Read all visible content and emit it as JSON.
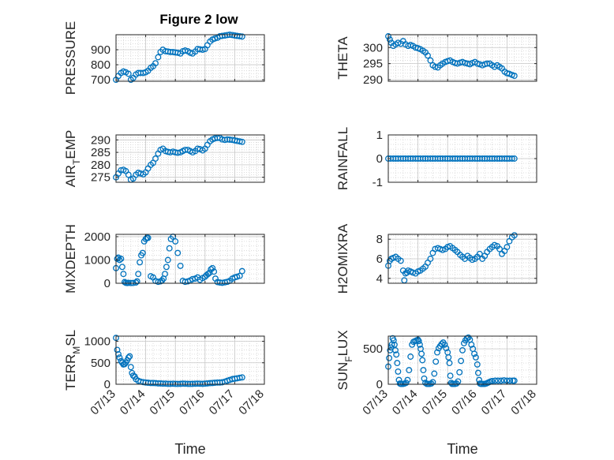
{
  "chart_data": {
    "type": "scatter",
    "title": "Figure 2 low",
    "marker_color": "#0072BD",
    "grid": true,
    "minor_grid": true,
    "x_ticks": [
      "07/13",
      "07/14",
      "07/15",
      "07/16",
      "07/17",
      "07/18"
    ],
    "x_axis_label": "Time",
    "subplots": [
      {
        "name": "pressure",
        "ylabel": "PRESSURE",
        "ylim": [
          690,
          1000
        ],
        "yticks": [
          700,
          800,
          900
        ],
        "ytick_labels": [
          "700",
          "800",
          "900"
        ],
        "x": [
          13.0,
          13.08,
          13.17,
          13.25,
          13.33,
          13.42,
          13.5,
          13.58,
          13.67,
          13.75,
          13.83,
          13.92,
          14.0,
          14.08,
          14.17,
          14.25,
          14.33,
          14.42,
          14.5,
          14.58,
          14.67,
          14.75,
          14.83,
          14.92,
          15.0,
          15.08,
          15.17,
          15.25,
          15.33,
          15.42,
          15.5,
          15.58,
          15.67,
          15.75,
          15.83,
          15.92,
          16.0,
          16.08,
          16.17,
          16.25,
          16.33,
          16.42,
          16.5,
          16.58,
          16.67,
          16.75,
          16.83,
          16.92,
          17.0,
          17.08,
          17.17,
          17.25
        ],
        "y": [
          700,
          725,
          745,
          755,
          750,
          740,
          700,
          712,
          735,
          745,
          745,
          745,
          750,
          760,
          780,
          790,
          810,
          850,
          885,
          900,
          890,
          888,
          885,
          885,
          882,
          880,
          875,
          890,
          895,
          890,
          880,
          875,
          888,
          905,
          903,
          900,
          905,
          930,
          955,
          968,
          975,
          980,
          990,
          992,
          995,
          998,
          1000,
          998,
          995,
          992,
          990,
          988
        ]
      },
      {
        "name": "theta",
        "ylabel": "THETA",
        "ylim": [
          289.5,
          304
        ],
        "yticks": [
          290,
          295,
          300
        ],
        "ytick_labels": [
          "290",
          "295",
          "300"
        ],
        "x": [
          13.0,
          13.05,
          13.1,
          13.17,
          13.25,
          13.33,
          13.42,
          13.5,
          13.58,
          13.67,
          13.75,
          13.83,
          13.92,
          14.0,
          14.08,
          14.17,
          14.25,
          14.33,
          14.42,
          14.5,
          14.58,
          14.67,
          14.75,
          14.83,
          14.92,
          15.0,
          15.08,
          15.17,
          15.25,
          15.33,
          15.42,
          15.5,
          15.58,
          15.67,
          15.75,
          15.83,
          15.92,
          16.0,
          16.08,
          16.17,
          16.25,
          16.33,
          16.42,
          16.5,
          16.58,
          16.67,
          16.75,
          16.83,
          16.92,
          17.0,
          17.08,
          17.17,
          17.25
        ],
        "y": [
          303.5,
          302.5,
          301.5,
          300.5,
          301.0,
          301.5,
          301.2,
          302.0,
          301.0,
          300.5,
          300.8,
          300.5,
          300.0,
          299.8,
          299.5,
          299.0,
          298.5,
          297.5,
          296.0,
          294.5,
          294.0,
          293.8,
          294.5,
          295.0,
          295.5,
          295.8,
          296.0,
          295.5,
          295.2,
          295.0,
          295.3,
          295.5,
          295.2,
          295.0,
          294.8,
          295.2,
          295.5,
          295.0,
          294.8,
          294.5,
          294.8,
          295.0,
          295.0,
          294.5,
          294.0,
          294.5,
          294.0,
          293.5,
          292.5,
          292.0,
          291.8,
          291.5,
          291.2
        ]
      },
      {
        "name": "air_temp",
        "ylabel_main": "AIR",
        "ylabel_sub": "T",
        "ylabel_tail": "EMP",
        "ylim": [
          273,
          292
        ],
        "yticks": [
          275,
          280,
          285,
          290
        ],
        "ytick_labels": [
          "275",
          "280",
          "285",
          "290"
        ],
        "x": [
          13.0,
          13.08,
          13.17,
          13.25,
          13.33,
          13.42,
          13.5,
          13.58,
          13.67,
          13.75,
          13.83,
          13.92,
          14.0,
          14.08,
          14.17,
          14.25,
          14.33,
          14.42,
          14.5,
          14.58,
          14.67,
          14.75,
          14.83,
          14.92,
          15.0,
          15.08,
          15.17,
          15.25,
          15.33,
          15.42,
          15.5,
          15.58,
          15.67,
          15.75,
          15.83,
          15.92,
          16.0,
          16.08,
          16.17,
          16.25,
          16.33,
          16.42,
          16.5,
          16.58,
          16.67,
          16.75,
          16.83,
          16.92,
          17.0,
          17.08,
          17.17,
          17.25
        ],
        "y": [
          275.0,
          276.5,
          277.8,
          278.0,
          277.5,
          276.0,
          274.0,
          274.5,
          276.0,
          276.8,
          276.5,
          276.2,
          277.0,
          278.5,
          280.0,
          280.8,
          282.5,
          284.5,
          286.0,
          286.5,
          285.5,
          285.2,
          285.0,
          285.3,
          285.0,
          284.8,
          285.0,
          285.5,
          286.0,
          286.0,
          285.5,
          285.0,
          285.5,
          286.5,
          286.3,
          285.8,
          286.5,
          288.0,
          289.5,
          290.2,
          290.6,
          290.8,
          290.8,
          290.2,
          290.0,
          290.2,
          290.1,
          290.0,
          289.8,
          289.6,
          289.4,
          289.2
        ]
      },
      {
        "name": "rainfall",
        "ylabel": "RAINFALL",
        "ylim": [
          -1,
          1
        ],
        "yticks": [
          -1,
          0,
          1
        ],
        "ytick_labels": [
          "-1",
          "0",
          "1"
        ],
        "x": [
          13.0,
          13.08,
          13.17,
          13.25,
          13.33,
          13.42,
          13.5,
          13.58,
          13.67,
          13.75,
          13.83,
          13.92,
          14.0,
          14.08,
          14.17,
          14.25,
          14.33,
          14.42,
          14.5,
          14.58,
          14.67,
          14.75,
          14.83,
          14.92,
          15.0,
          15.08,
          15.17,
          15.25,
          15.33,
          15.42,
          15.5,
          15.58,
          15.67,
          15.75,
          15.83,
          15.92,
          16.0,
          16.08,
          16.17,
          16.25,
          16.33,
          16.42,
          16.5,
          16.58,
          16.67,
          16.75,
          16.83,
          16.92,
          17.0,
          17.08,
          17.17,
          17.25
        ],
        "y": [
          0,
          0,
          0,
          0,
          0,
          0,
          0,
          0,
          0,
          0,
          0,
          0,
          0,
          0,
          0,
          0,
          0,
          0,
          0,
          0,
          0,
          0,
          0,
          0,
          0,
          0,
          0,
          0,
          0,
          0,
          0,
          0,
          0,
          0,
          0,
          0,
          0,
          0,
          0,
          0,
          0,
          0,
          0,
          0,
          0,
          0,
          0,
          0,
          0,
          0,
          0,
          0
        ]
      },
      {
        "name": "mixdepth",
        "ylabel": "MIXDEPTH",
        "ylim": [
          0,
          2100
        ],
        "yticks": [
          0,
          1000,
          2000
        ],
        "ytick_labels": [
          "0",
          "1000",
          "2000"
        ],
        "x": [
          13.0,
          13.04,
          13.08,
          13.12,
          13.17,
          13.21,
          13.25,
          13.29,
          13.33,
          13.38,
          13.42,
          13.5,
          13.58,
          13.67,
          13.71,
          13.75,
          13.8,
          13.85,
          13.9,
          13.95,
          14.0,
          14.04,
          14.08,
          14.17,
          14.25,
          14.33,
          14.42,
          14.5,
          14.55,
          14.6,
          14.65,
          14.7,
          14.75,
          14.8,
          14.85,
          14.92,
          15.0,
          15.08,
          15.17,
          15.25,
          15.33,
          15.42,
          15.5,
          15.58,
          15.67,
          15.75,
          15.83,
          15.92,
          16.0,
          16.05,
          16.1,
          16.15,
          16.2,
          16.25,
          16.3,
          16.35,
          16.42,
          16.5,
          16.58,
          16.67,
          16.75,
          16.83,
          16.92,
          17.0,
          17.08,
          17.17,
          17.25
        ],
        "y": [
          650,
          1050,
          1100,
          1000,
          1050,
          700,
          400,
          50,
          20,
          10,
          20,
          10,
          15,
          30,
          80,
          400,
          900,
          1200,
          1300,
          1800,
          1900,
          1950,
          1950,
          300,
          250,
          100,
          60,
          80,
          120,
          200,
          400,
          700,
          1000,
          1500,
          1900,
          2000,
          1800,
          1300,
          750,
          100,
          60,
          80,
          120,
          180,
          200,
          250,
          150,
          220,
          280,
          350,
          400,
          450,
          600,
          650,
          500,
          200,
          50,
          30,
          20,
          40,
          60,
          100,
          200,
          250,
          280,
          320,
          520
        ]
      },
      {
        "name": "h2omixra",
        "ylabel": "H2OMIXRA",
        "ylim": [
          3.5,
          8.5
        ],
        "yticks": [
          4,
          6,
          8
        ],
        "ytick_labels": [
          "4",
          "6",
          "8"
        ],
        "x": [
          13.0,
          13.05,
          13.1,
          13.17,
          13.25,
          13.33,
          13.42,
          13.5,
          13.54,
          13.58,
          13.63,
          13.67,
          13.75,
          13.83,
          13.92,
          14.0,
          14.08,
          14.17,
          14.25,
          14.33,
          14.42,
          14.5,
          14.58,
          14.67,
          14.75,
          14.83,
          14.92,
          15.0,
          15.08,
          15.17,
          15.25,
          15.33,
          15.42,
          15.5,
          15.58,
          15.67,
          15.75,
          15.83,
          15.92,
          16.0,
          16.08,
          16.17,
          16.25,
          16.33,
          16.42,
          16.5,
          16.58,
          16.67,
          16.75,
          16.83,
          16.92,
          17.0,
          17.08,
          17.17,
          17.25
        ],
        "y": [
          5.3,
          5.8,
          6.0,
          6.1,
          6.2,
          6.0,
          5.8,
          4.8,
          3.8,
          4.5,
          4.6,
          4.8,
          4.7,
          4.6,
          4.5,
          4.7,
          4.8,
          5.0,
          5.2,
          5.6,
          6.0,
          6.6,
          7.0,
          7.1,
          7.0,
          6.9,
          7.0,
          7.2,
          7.3,
          7.1,
          6.9,
          6.7,
          6.4,
          6.2,
          6.0,
          6.3,
          6.1,
          5.9,
          6.0,
          6.2,
          6.5,
          6.0,
          6.3,
          6.7,
          7.0,
          7.2,
          7.4,
          7.3,
          7.0,
          6.5,
          6.8,
          7.2,
          7.8,
          8.2,
          8.4
        ]
      },
      {
        "name": "terr_msl",
        "ylabel_main": "TERR",
        "ylabel_sub": "M",
        "ylabel_tail": "SL",
        "ylim": [
          0,
          1120
        ],
        "yticks": [
          0,
          500,
          1000
        ],
        "ytick_labels": [
          "0",
          "500",
          "1000"
        ],
        "x": [
          13.0,
          13.04,
          13.08,
          13.12,
          13.17,
          13.21,
          13.25,
          13.29,
          13.33,
          13.38,
          13.42,
          13.46,
          13.5,
          13.54,
          13.58,
          13.63,
          13.67,
          13.75,
          13.83,
          13.92,
          14.0,
          14.08,
          14.17,
          14.25,
          14.33,
          14.42,
          14.5,
          14.58,
          14.67,
          14.75,
          14.83,
          14.92,
          15.0,
          15.08,
          15.17,
          15.25,
          15.33,
          15.42,
          15.5,
          15.58,
          15.67,
          15.75,
          15.83,
          15.92,
          16.0,
          16.08,
          16.17,
          16.25,
          16.33,
          16.42,
          16.5,
          16.58,
          16.67,
          16.75,
          16.83,
          16.92,
          17.0,
          17.08,
          17.17,
          17.25
        ],
        "y": [
          1080,
          800,
          700,
          620,
          540,
          500,
          460,
          470,
          500,
          560,
          620,
          650,
          400,
          260,
          200,
          180,
          120,
          80,
          60,
          50,
          40,
          35,
          30,
          30,
          25,
          20,
          18,
          15,
          15,
          10,
          10,
          12,
          10,
          8,
          10,
          15,
          12,
          10,
          8,
          10,
          12,
          15,
          12,
          10,
          15,
          20,
          25,
          30,
          35,
          40,
          40,
          45,
          60,
          80,
          100,
          120,
          130,
          140,
          150,
          160
        ]
      },
      {
        "name": "sun_flux",
        "ylabel_main": "SUN",
        "ylabel_sub": "F",
        "ylabel_tail": "LUX",
        "ylim": [
          0,
          680
        ],
        "yticks": [
          0,
          500
        ],
        "ytick_labels": [
          "0",
          "500"
        ],
        "x": [
          13.0,
          13.03,
          13.06,
          13.09,
          13.12,
          13.15,
          13.18,
          13.21,
          13.24,
          13.27,
          13.3,
          13.33,
          13.36,
          13.39,
          13.42,
          13.45,
          13.5,
          13.55,
          13.6,
          13.65,
          13.7,
          13.75,
          13.8,
          13.85,
          13.9,
          13.95,
          14.0,
          14.03,
          14.06,
          14.09,
          14.12,
          14.15,
          14.18,
          14.21,
          14.25,
          14.3,
          14.35,
          14.4,
          14.45,
          14.5,
          14.55,
          14.6,
          14.65,
          14.7,
          14.75,
          14.8,
          14.85,
          14.9,
          14.95,
          15.0,
          15.03,
          15.06,
          15.09,
          15.12,
          15.15,
          15.2,
          15.25,
          15.3,
          15.35,
          15.4,
          15.45,
          15.5,
          15.55,
          15.6,
          15.65,
          15.7,
          15.75,
          15.8,
          15.85,
          15.9,
          15.95,
          16.0,
          16.03,
          16.06,
          16.09,
          16.12,
          16.15,
          16.2,
          16.25,
          16.3,
          16.35,
          16.4,
          16.45,
          16.5,
          16.6,
          16.7,
          16.8,
          16.9,
          17.0,
          17.1,
          17.2,
          17.25
        ],
        "y": [
          250,
          370,
          480,
          520,
          560,
          650,
          620,
          560,
          480,
          420,
          300,
          180,
          60,
          10,
          5,
          5,
          5,
          10,
          20,
          60,
          200,
          390,
          560,
          600,
          610,
          620,
          630,
          610,
          560,
          500,
          430,
          340,
          200,
          80,
          20,
          5,
          5,
          5,
          10,
          30,
          150,
          320,
          450,
          510,
          540,
          570,
          590,
          560,
          510,
          450,
          380,
          300,
          120,
          20,
          5,
          5,
          5,
          10,
          40,
          170,
          330,
          480,
          580,
          620,
          650,
          660,
          630,
          560,
          500,
          430,
          380,
          280,
          160,
          60,
          10,
          5,
          5,
          5,
          5,
          10,
          20,
          30,
          40,
          45,
          50,
          50,
          50,
          55,
          50,
          50,
          50,
          50
        ]
      }
    ]
  }
}
